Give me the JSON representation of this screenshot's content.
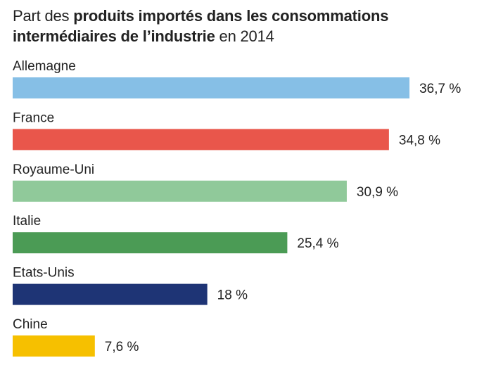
{
  "title": {
    "part1": "Part des ",
    "bold1": "produits importés dans les consommations intermédiaires de l’industrie",
    "part2": " en 2014"
  },
  "chart_data": {
    "type": "bar",
    "orientation": "horizontal",
    "title": "Part des produits importés dans les consommations intermédiaires de l’industrie en 2014",
    "categories": [
      "Allemagne",
      "France",
      "Royaume-Uni",
      "Italie",
      "Etats-Unis",
      "Chine"
    ],
    "values": [
      36.7,
      34.8,
      30.9,
      25.4,
      18,
      7.6
    ],
    "value_labels": [
      "36,7 %",
      "34,8 %",
      "30,9 %",
      "25,4 %",
      "18 %",
      "7,6 %"
    ],
    "colors": [
      "#86bfe6",
      "#e9564b",
      "#90c99a",
      "#4b9b55",
      "#1e3475",
      "#f6c000"
    ],
    "unit": "%",
    "grid": false,
    "legend": "none"
  }
}
